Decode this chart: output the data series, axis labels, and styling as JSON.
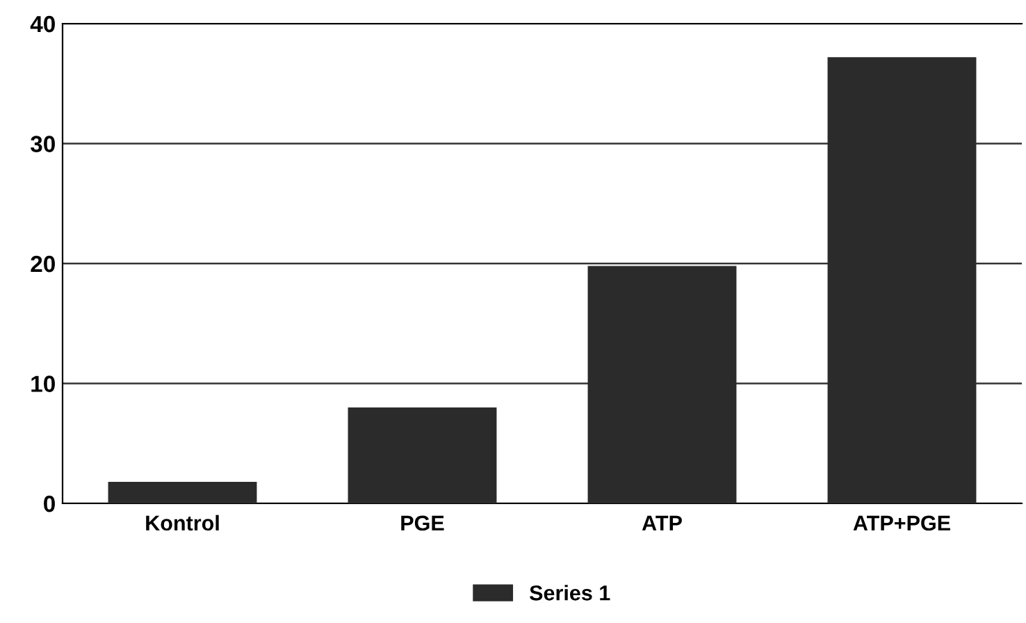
{
  "chart_data": {
    "type": "bar",
    "categories": [
      "Kontrol",
      "PGE",
      "ATP",
      "ATP+PGE"
    ],
    "series": [
      {
        "name": "Series 1",
        "color": "#2b2b2b",
        "values": [
          1.8,
          8,
          19.8,
          37.2
        ]
      }
    ],
    "ylim": [
      0,
      40
    ],
    "yticks": [
      0,
      10,
      20,
      30,
      40
    ],
    "grid": "y",
    "legend": "bottom"
  }
}
